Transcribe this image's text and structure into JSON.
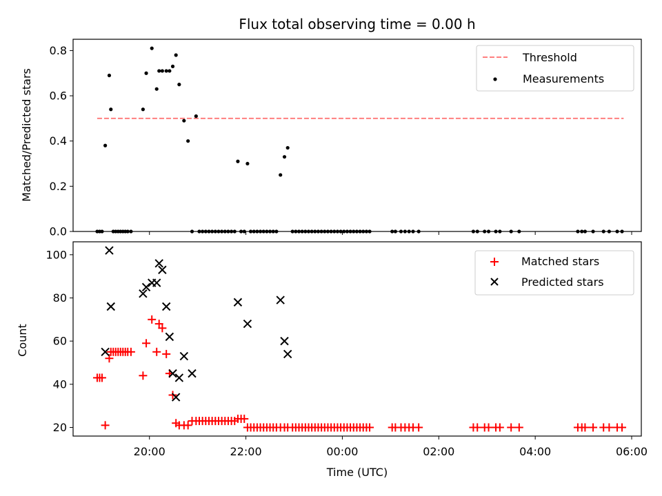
{
  "title": "Flux total observing time = 0.00 h",
  "chart_data": [
    {
      "type": "scatter",
      "panel": "top",
      "title": "Flux total observing time = 0.00 h",
      "xlabel": "",
      "ylabel": "Matched/Predicted stars",
      "ylim": [
        0,
        0.85
      ],
      "yticks": [
        0.0,
        0.2,
        0.4,
        0.6,
        0.8
      ],
      "ytick_labels": [
        "0.0",
        "0.2",
        "0.4",
        "0.6",
        "0.8"
      ],
      "legend_position": "top-right",
      "threshold": {
        "name": "Threshold",
        "y": 0.5,
        "x_start": "18:55",
        "x_end": "05:50",
        "color": "#ff7f7f"
      },
      "series": [
        {
          "name": "Measurements",
          "color": "#000000",
          "points": [
            [
              "18:55",
              0.0
            ],
            [
              "18:58",
              0.0
            ],
            [
              "19:01",
              0.0
            ],
            [
              "19:05",
              0.38
            ],
            [
              "19:10",
              0.69
            ],
            [
              "19:12",
              0.54
            ],
            [
              "19:15",
              0.0
            ],
            [
              "19:18",
              0.0
            ],
            [
              "19:21",
              0.0
            ],
            [
              "19:24",
              0.0
            ],
            [
              "19:27",
              0.0
            ],
            [
              "19:30",
              0.0
            ],
            [
              "19:33",
              0.0
            ],
            [
              "19:37",
              0.0
            ],
            [
              "19:52",
              0.54
            ],
            [
              "19:56",
              0.7
            ],
            [
              "20:03",
              0.81
            ],
            [
              "20:09",
              0.63
            ],
            [
              "20:12",
              0.71
            ],
            [
              "20:16",
              0.71
            ],
            [
              "20:21",
              0.71
            ],
            [
              "20:25",
              0.71
            ],
            [
              "20:29",
              0.73
            ],
            [
              "20:33",
              0.78
            ],
            [
              "20:37",
              0.65
            ],
            [
              "20:43",
              0.49
            ],
            [
              "20:48",
              0.4
            ],
            [
              "20:53",
              0.0
            ],
            [
              "20:58",
              0.51
            ],
            [
              "21:02",
              0.0
            ],
            [
              "21:06",
              0.0
            ],
            [
              "21:10",
              0.0
            ],
            [
              "21:14",
              0.0
            ],
            [
              "21:18",
              0.0
            ],
            [
              "21:22",
              0.0
            ],
            [
              "21:26",
              0.0
            ],
            [
              "21:30",
              0.0
            ],
            [
              "21:34",
              0.0
            ],
            [
              "21:38",
              0.0
            ],
            [
              "21:42",
              0.0
            ],
            [
              "21:46",
              0.0
            ],
            [
              "21:50",
              0.31
            ],
            [
              "21:54",
              0.0
            ],
            [
              "21:58",
              0.0
            ],
            [
              "22:02",
              0.3
            ],
            [
              "22:06",
              0.0
            ],
            [
              "22:10",
              0.0
            ],
            [
              "22:14",
              0.0
            ],
            [
              "22:18",
              0.0
            ],
            [
              "22:22",
              0.0
            ],
            [
              "22:26",
              0.0
            ],
            [
              "22:30",
              0.0
            ],
            [
              "22:34",
              0.0
            ],
            [
              "22:38",
              0.0
            ],
            [
              "22:43",
              0.25
            ],
            [
              "22:48",
              0.33
            ],
            [
              "22:52",
              0.37
            ],
            [
              "22:58",
              0.0
            ],
            [
              "23:02",
              0.0
            ],
            [
              "23:06",
              0.0
            ],
            [
              "23:10",
              0.0
            ],
            [
              "23:14",
              0.0
            ],
            [
              "23:18",
              0.0
            ],
            [
              "23:22",
              0.0
            ],
            [
              "23:26",
              0.0
            ],
            [
              "23:30",
              0.0
            ],
            [
              "23:34",
              0.0
            ],
            [
              "23:38",
              0.0
            ],
            [
              "23:42",
              0.0
            ],
            [
              "23:46",
              0.0
            ],
            [
              "23:50",
              0.0
            ],
            [
              "23:54",
              0.0
            ],
            [
              "23:58",
              0.0
            ],
            [
              "00:02",
              0.0
            ],
            [
              "00:06",
              0.0
            ],
            [
              "00:10",
              0.0
            ],
            [
              "00:14",
              0.0
            ],
            [
              "00:18",
              0.0
            ],
            [
              "00:22",
              0.0
            ],
            [
              "00:26",
              0.0
            ],
            [
              "00:30",
              0.0
            ],
            [
              "00:34",
              0.0
            ],
            [
              "01:02",
              0.0
            ],
            [
              "01:06",
              0.0
            ],
            [
              "01:13",
              0.0
            ],
            [
              "01:18",
              0.0
            ],
            [
              "01:23",
              0.0
            ],
            [
              "01:28",
              0.0
            ],
            [
              "01:35",
              0.0
            ],
            [
              "02:43",
              0.0
            ],
            [
              "02:48",
              0.0
            ],
            [
              "02:57",
              0.0
            ],
            [
              "03:02",
              0.0
            ],
            [
              "03:11",
              0.0
            ],
            [
              "03:16",
              0.0
            ],
            [
              "03:30",
              0.0
            ],
            [
              "03:40",
              0.0
            ],
            [
              "04:53",
              0.0
            ],
            [
              "04:58",
              0.0
            ],
            [
              "05:02",
              0.0
            ],
            [
              "05:12",
              0.0
            ],
            [
              "05:25",
              0.0
            ],
            [
              "05:32",
              0.0
            ],
            [
              "05:42",
              0.0
            ],
            [
              "05:48",
              0.0
            ]
          ]
        }
      ]
    },
    {
      "type": "scatter",
      "panel": "bottom",
      "xlabel": "Time (UTC)",
      "ylabel": "Count",
      "ylim": [
        16,
        106
      ],
      "yticks": [
        20,
        40,
        60,
        80,
        100
      ],
      "ytick_labels": [
        "20",
        "40",
        "60",
        "80",
        "100"
      ],
      "xticks": [
        "20:00",
        "22:00",
        "00:00",
        "02:00",
        "04:00",
        "06:00"
      ],
      "xlim": [
        "18:25",
        "06:12"
      ],
      "legend_position": "top-right",
      "series": [
        {
          "name": "Matched stars",
          "color": "#ff0000",
          "marker": "plus",
          "points": [
            [
              "18:55",
              43
            ],
            [
              "18:58",
              43
            ],
            [
              "19:01",
              43
            ],
            [
              "19:05",
              21
            ],
            [
              "19:10",
              52
            ],
            [
              "19:12",
              55
            ],
            [
              "19:15",
              55
            ],
            [
              "19:18",
              55
            ],
            [
              "19:21",
              55
            ],
            [
              "19:24",
              55
            ],
            [
              "19:27",
              55
            ],
            [
              "19:30",
              55
            ],
            [
              "19:33",
              55
            ],
            [
              "19:37",
              55
            ],
            [
              "19:52",
              44
            ],
            [
              "19:56",
              59
            ],
            [
              "20:03",
              70
            ],
            [
              "20:09",
              55
            ],
            [
              "20:12",
              68
            ],
            [
              "20:16",
              66
            ],
            [
              "20:21",
              54
            ],
            [
              "20:25",
              45
            ],
            [
              "20:29",
              35
            ],
            [
              "20:33",
              22
            ],
            [
              "20:37",
              21
            ],
            [
              "20:43",
              21
            ],
            [
              "20:48",
              21
            ],
            [
              "20:53",
              23
            ],
            [
              "20:58",
              23
            ],
            [
              "21:02",
              23
            ],
            [
              "21:06",
              23
            ],
            [
              "21:10",
              23
            ],
            [
              "21:14",
              23
            ],
            [
              "21:18",
              23
            ],
            [
              "21:22",
              23
            ],
            [
              "21:26",
              23
            ],
            [
              "21:30",
              23
            ],
            [
              "21:34",
              23
            ],
            [
              "21:38",
              23
            ],
            [
              "21:42",
              23
            ],
            [
              "21:46",
              23
            ],
            [
              "21:50",
              24
            ],
            [
              "21:54",
              24
            ],
            [
              "21:58",
              24
            ],
            [
              "22:02",
              20
            ],
            [
              "22:06",
              20
            ],
            [
              "22:10",
              20
            ],
            [
              "22:14",
              20
            ],
            [
              "22:18",
              20
            ],
            [
              "22:22",
              20
            ],
            [
              "22:26",
              20
            ],
            [
              "22:30",
              20
            ],
            [
              "22:34",
              20
            ],
            [
              "22:38",
              20
            ],
            [
              "22:43",
              20
            ],
            [
              "22:48",
              20
            ],
            [
              "22:52",
              20
            ],
            [
              "22:58",
              20
            ],
            [
              "23:02",
              20
            ],
            [
              "23:06",
              20
            ],
            [
              "23:10",
              20
            ],
            [
              "23:14",
              20
            ],
            [
              "23:18",
              20
            ],
            [
              "23:22",
              20
            ],
            [
              "23:26",
              20
            ],
            [
              "23:30",
              20
            ],
            [
              "23:34",
              20
            ],
            [
              "23:38",
              20
            ],
            [
              "23:42",
              20
            ],
            [
              "23:46",
              20
            ],
            [
              "23:50",
              20
            ],
            [
              "23:54",
              20
            ],
            [
              "23:58",
              20
            ],
            [
              "00:02",
              20
            ],
            [
              "00:06",
              20
            ],
            [
              "00:10",
              20
            ],
            [
              "00:14",
              20
            ],
            [
              "00:18",
              20
            ],
            [
              "00:22",
              20
            ],
            [
              "00:26",
              20
            ],
            [
              "00:30",
              20
            ],
            [
              "00:34",
              20
            ],
            [
              "01:02",
              20
            ],
            [
              "01:06",
              20
            ],
            [
              "01:13",
              20
            ],
            [
              "01:18",
              20
            ],
            [
              "01:23",
              20
            ],
            [
              "01:28",
              20
            ],
            [
              "01:35",
              20
            ],
            [
              "02:43",
              20
            ],
            [
              "02:48",
              20
            ],
            [
              "02:57",
              20
            ],
            [
              "03:02",
              20
            ],
            [
              "03:11",
              20
            ],
            [
              "03:16",
              20
            ],
            [
              "03:30",
              20
            ],
            [
              "03:40",
              20
            ],
            [
              "04:53",
              20
            ],
            [
              "04:58",
              20
            ],
            [
              "05:02",
              20
            ],
            [
              "05:12",
              20
            ],
            [
              "05:25",
              20
            ],
            [
              "05:32",
              20
            ],
            [
              "05:42",
              20
            ],
            [
              "05:48",
              20
            ]
          ]
        },
        {
          "name": "Predicted stars",
          "color": "#000000",
          "marker": "x",
          "points": [
            [
              "19:05",
              55
            ],
            [
              "19:10",
              102
            ],
            [
              "19:12",
              76
            ],
            [
              "19:52",
              82
            ],
            [
              "19:56",
              85
            ],
            [
              "20:03",
              87
            ],
            [
              "20:09",
              87
            ],
            [
              "20:12",
              96
            ],
            [
              "20:16",
              93
            ],
            [
              "20:21",
              76
            ],
            [
              "20:25",
              62
            ],
            [
              "20:29",
              45
            ],
            [
              "20:33",
              34
            ],
            [
              "20:37",
              43
            ],
            [
              "20:43",
              53
            ],
            [
              "20:53",
              45
            ],
            [
              "21:50",
              78
            ],
            [
              "22:02",
              68
            ],
            [
              "22:43",
              79
            ],
            [
              "22:48",
              60
            ],
            [
              "22:52",
              54
            ]
          ]
        }
      ]
    }
  ]
}
